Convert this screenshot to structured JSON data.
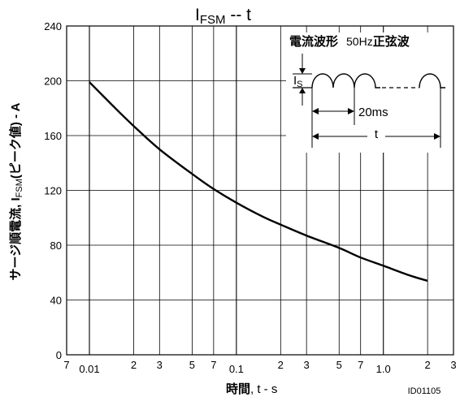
{
  "chart_data": {
    "type": "line",
    "title": {
      "main": "I",
      "sub": "FSM",
      "rest": " -- t"
    },
    "xlabel": {
      "bold": "時間",
      "rest": ", t - s"
    },
    "ylabel": {
      "a": "サージ順電流, I",
      "sub": "FSM",
      "b": "(ピーク値) - A"
    },
    "x_scale": "log",
    "xlim": [
      0.007,
      3
    ],
    "ylim": [
      0,
      240
    ],
    "y_ticks": [
      0,
      40,
      80,
      120,
      160,
      200,
      240
    ],
    "x_tick_labels": [
      {
        "x": 0.007,
        "label": "7"
      },
      {
        "x": 0.01,
        "label": "0.01"
      },
      {
        "x": 0.02,
        "label": "2"
      },
      {
        "x": 0.03,
        "label": "3"
      },
      {
        "x": 0.05,
        "label": "5"
      },
      {
        "x": 0.07,
        "label": "7"
      },
      {
        "x": 0.1,
        "label": "0.1"
      },
      {
        "x": 0.2,
        "label": "2"
      },
      {
        "x": 0.3,
        "label": "3"
      },
      {
        "x": 0.5,
        "label": "5"
      },
      {
        "x": 0.7,
        "label": "7"
      },
      {
        "x": 1.0,
        "label": "1.0"
      },
      {
        "x": 2.0,
        "label": "2"
      },
      {
        "x": 3.0,
        "label": "3"
      }
    ],
    "x_grid": [
      0.01,
      0.02,
      0.03,
      0.05,
      0.07,
      0.1,
      0.2,
      0.3,
      0.5,
      0.7,
      1.0,
      2.0
    ],
    "y_grid": [
      40,
      80,
      120,
      160,
      200
    ],
    "series": [
      {
        "x": [
          0.01,
          0.015,
          0.02,
          0.03,
          0.05,
          0.07,
          0.1,
          0.15,
          0.2,
          0.3,
          0.5,
          0.7,
          1.0,
          1.5,
          2.0
        ],
        "y": [
          199,
          180,
          167,
          150,
          132,
          121,
          111,
          101,
          95,
          87,
          78,
          71,
          65,
          58,
          54
        ]
      }
    ],
    "grid": true,
    "legend": "none",
    "id_label": "ID01105",
    "inset": {
      "title_bold": "電流波形",
      "title_normal": "50Hz",
      "title_bold2": "正弦波",
      "is_label": "I",
      "is_sub": "S",
      "period_label": "20ms",
      "t_label": "t"
    }
  }
}
